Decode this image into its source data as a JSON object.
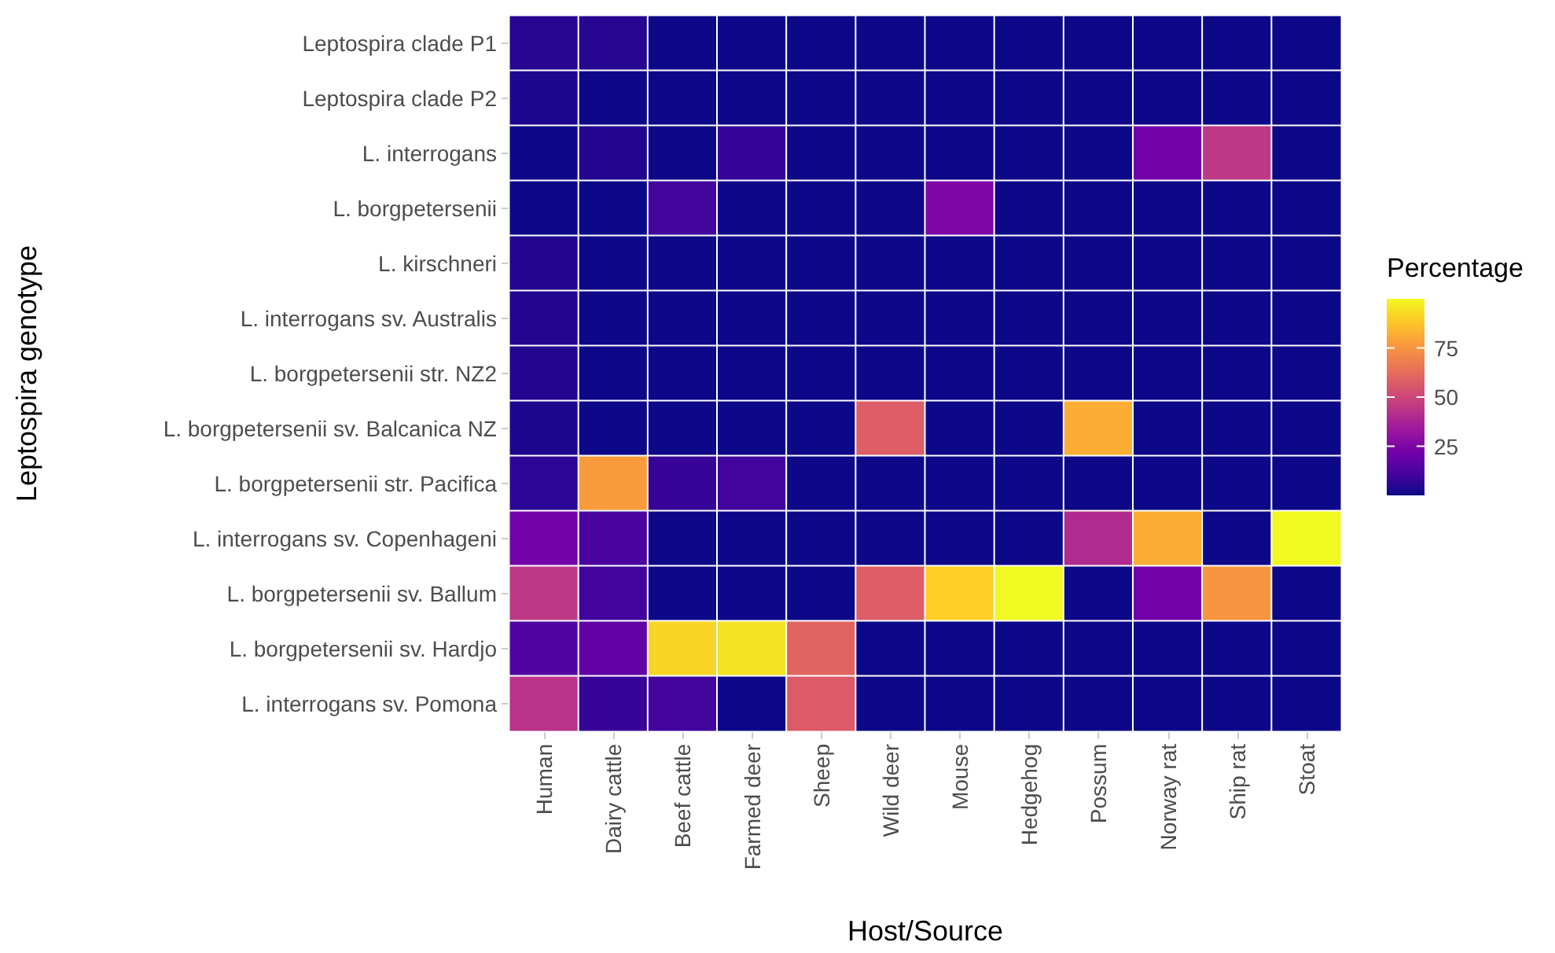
{
  "chart_data": {
    "type": "heatmap",
    "xlabel": "Host/Source",
    "ylabel": "Leptospira genotype",
    "clabel": "Percentage",
    "categories": [
      "Human",
      "Dairy cattle",
      "Beef cattle",
      "Farmed deer",
      "Sheep",
      "Wild deer",
      "Mouse",
      "Hedgehog",
      "Possum",
      "Norway rat",
      "Ship rat",
      "Stoat"
    ],
    "y_categories": [
      "Leptospira clade P1",
      "Leptospira clade P2",
      "L. interrogans",
      "L. borgpetersenii",
      "L. kirschneri",
      "L. interrogans sv. Australis",
      "L. borgpetersenii str. NZ2",
      "L. borgpetersenii sv. Balcanica NZ",
      "L. borgpetersenii str. Pacifica",
      "L. interrogans sv. Copenhageni",
      "L. borgpetersenii sv. Ballum",
      "L. borgpetersenii sv. Hardjo",
      "L. interrogans sv. Pomona"
    ],
    "cells": [
      [
        5,
        5,
        0,
        0,
        0,
        0,
        0,
        0,
        0,
        0,
        0,
        0
      ],
      [
        3,
        0,
        0,
        0,
        0,
        0,
        0,
        0,
        0,
        0,
        0,
        0
      ],
      [
        0,
        4,
        0,
        8,
        0,
        0,
        0,
        0,
        0,
        22,
        45,
        0
      ],
      [
        0,
        0,
        10,
        0,
        0,
        0,
        25,
        0,
        0,
        0,
        0,
        0
      ],
      [
        4,
        0,
        0,
        0,
        0,
        0,
        0,
        0,
        0,
        0,
        0,
        0
      ],
      [
        4,
        0,
        0,
        0,
        0,
        0,
        0,
        0,
        0,
        0,
        0,
        0
      ],
      [
        4,
        0,
        0,
        0,
        0,
        0,
        0,
        0,
        0,
        0,
        0,
        0
      ],
      [
        3,
        0,
        0,
        0,
        0,
        58,
        0,
        0,
        82,
        0,
        0,
        0
      ],
      [
        6,
        77,
        8,
        10,
        0,
        0,
        0,
        0,
        0,
        0,
        0,
        0
      ],
      [
        22,
        12,
        0,
        0,
        0,
        0,
        0,
        0,
        40,
        82,
        0,
        100
      ],
      [
        45,
        10,
        0,
        0,
        0,
        58,
        90,
        100,
        0,
        22,
        75,
        0
      ],
      [
        14,
        18,
        92,
        95,
        60,
        0,
        0,
        0,
        0,
        0,
        0,
        0
      ],
      [
        43,
        8,
        10,
        0,
        57,
        0,
        0,
        0,
        0,
        0,
        0,
        0
      ]
    ],
    "clim": [
      0,
      100
    ],
    "cticks": [
      25,
      50,
      75
    ]
  }
}
